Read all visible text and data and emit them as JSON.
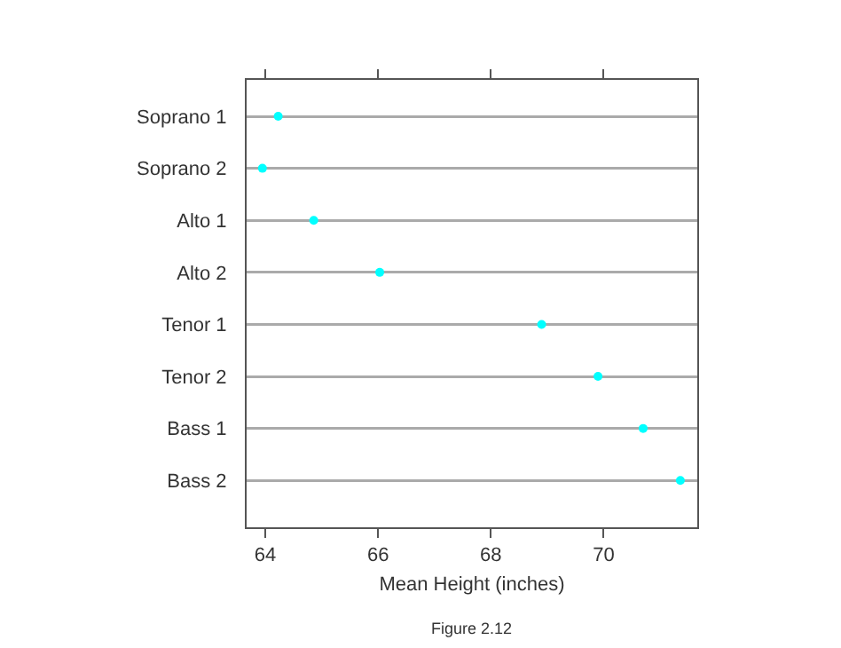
{
  "chart_data": {
    "type": "scatter",
    "xlabel": "Mean Height (inches)",
    "orientation": "horizontal",
    "categories": [
      "Soprano 1",
      "Soprano 2",
      "Alto 1",
      "Alto 2",
      "Tenor 1",
      "Tenor 2",
      "Bass 1",
      "Bass 2"
    ],
    "values": [
      64.23,
      63.95,
      64.86,
      66.03,
      68.9,
      69.9,
      70.7,
      71.36
    ],
    "color": "#00ffff",
    "marker": "circle",
    "grid": "y",
    "xlim": [
      63.67,
      71.66
    ],
    "xticks": [
      64,
      66,
      68,
      70
    ],
    "annotations": [
      "Figure 2.12"
    ]
  }
}
